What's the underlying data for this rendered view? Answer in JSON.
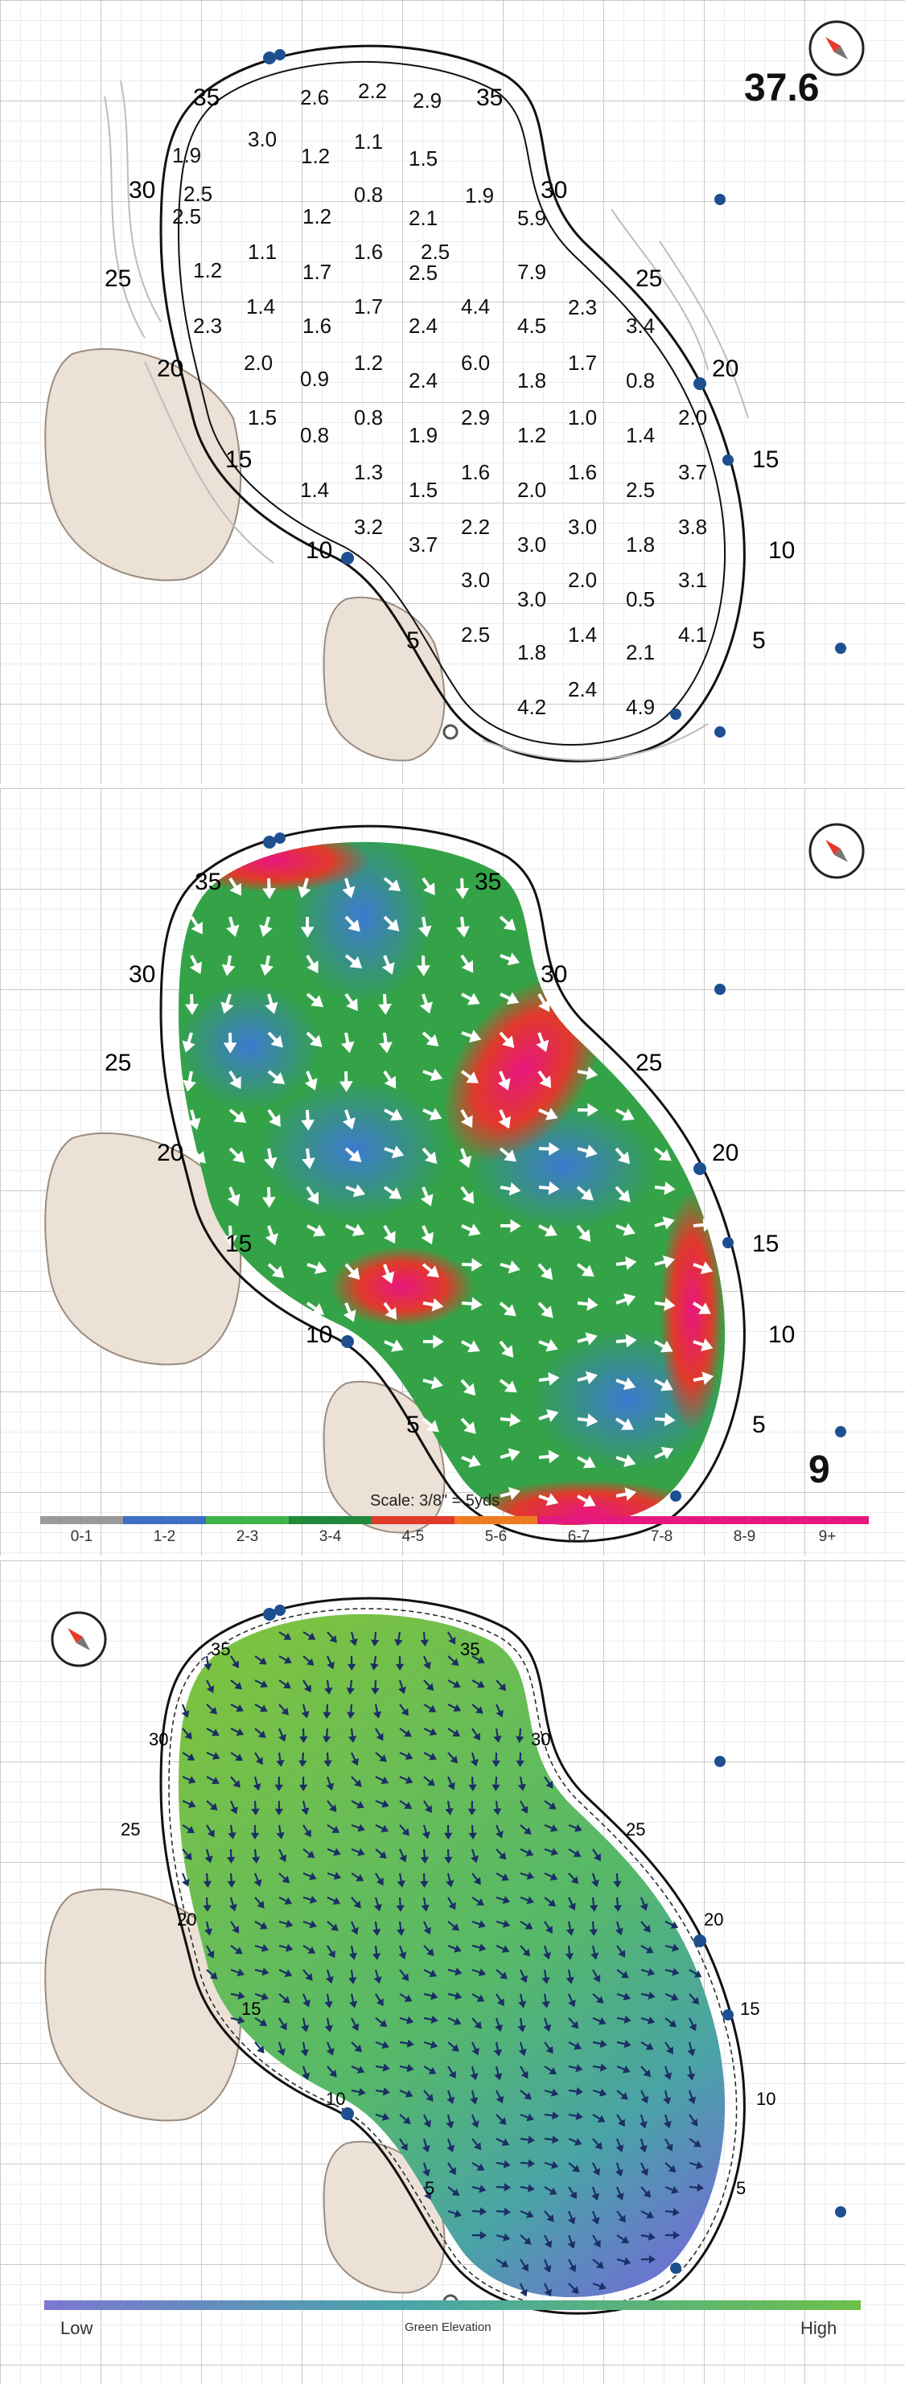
{
  "hole_number_top": "37.6",
  "hole_number_mid": "9",
  "yardage_labels": [
    "35",
    "30",
    "25",
    "20",
    "15",
    "10",
    "5"
  ],
  "slope_values": [
    "2.6",
    "2.2",
    "2.9",
    "3.0",
    "1.1",
    "1.9",
    "1.2",
    "1.5",
    "2.5",
    "0.8",
    "1.9",
    "2.5",
    "1.2",
    "2.1",
    "5.9",
    "1.1",
    "1.6",
    "2.5",
    "1.2",
    "1.7",
    "2.5",
    "7.9",
    "1.4",
    "1.7",
    "4.4",
    "2.3",
    "2.3",
    "1.6",
    "2.4",
    "4.5",
    "3.4",
    "2.0",
    "1.2",
    "6.0",
    "1.7",
    "0.9",
    "2.4",
    "1.8",
    "0.8",
    "1.5",
    "0.8",
    "2.9",
    "1.0",
    "2.0",
    "0.8",
    "1.9",
    "1.2",
    "1.4",
    "1.3",
    "1.6",
    "1.6",
    "3.7",
    "1.4",
    "1.5",
    "2.0",
    "2.5",
    "3.2",
    "2.2",
    "3.0",
    "3.8",
    "3.7",
    "3.0",
    "1.8",
    "3.0",
    "2.0",
    "3.1",
    "3.0",
    "0.5",
    "2.5",
    "1.4",
    "4.1",
    "1.8",
    "2.1",
    "2.4",
    "4.2",
    "4.9"
  ],
  "scale_note": "Scale: 3/8\" = 5yds",
  "legend": {
    "labels": [
      "0-1",
      "1-2",
      "2-3",
      "3-4",
      "4-5",
      "5-6",
      "6-7",
      "7-8",
      "8-9",
      "9+"
    ],
    "colors": [
      "#9a9a9a",
      "#3d6fc4",
      "#3fb44a",
      "#1f8a3a",
      "#e03a2a",
      "#f07a22",
      "#e4197e",
      "#e4197e",
      "#e4197e",
      "#e4197e"
    ]
  },
  "elevation": {
    "low_label": "Low",
    "high_label": "High",
    "title": "Green Elevation"
  },
  "colors": {
    "bunker": "#ece1d6",
    "green_outline": "#111111",
    "sprinkler": "#1d4f91",
    "arrow_blue": "#1c2f66"
  }
}
